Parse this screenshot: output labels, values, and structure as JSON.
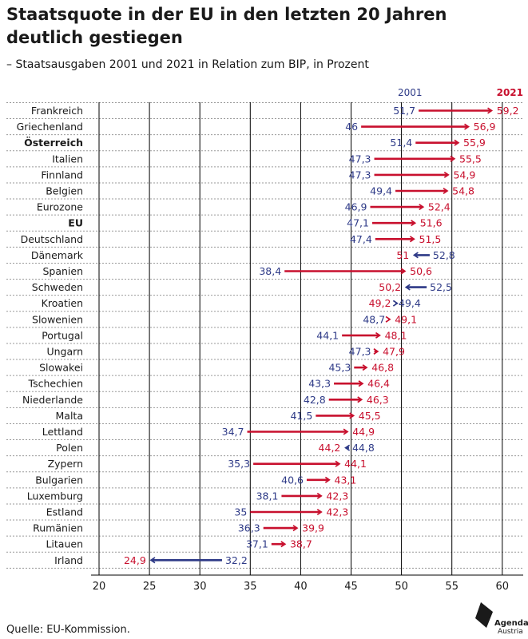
{
  "title": "Staatsquote in der EU in den letzten 20 Jahren deutlich gestiegen",
  "subtitle": "– Staatsausgaben 2001 und 2021 in Relation zum BIP, in Prozent",
  "source": "Quelle: EU-Kommission.",
  "logo": {
    "line1": "Agenda",
    "line2": "Austria"
  },
  "colors": {
    "y2001": "#2e3a87",
    "y2021": "#c8102e",
    "grid": "#000000",
    "dotted": "#9a9a9a"
  },
  "chart_data": {
    "type": "arrow-dot",
    "series": [
      {
        "name": "2001",
        "color": "#2e3a87"
      },
      {
        "name": "2021",
        "color": "#c8102e"
      }
    ],
    "xlim": [
      20,
      60
    ],
    "xticks": [
      20,
      25,
      30,
      35,
      40,
      45,
      50,
      55,
      60
    ],
    "grid": true,
    "rows": [
      {
        "country": "Frankreich",
        "v2001": "51,7",
        "v2021": "59,2",
        "bold": false
      },
      {
        "country": "Griechenland",
        "v2001": "46",
        "v2021": "56,9",
        "bold": false
      },
      {
        "country": "Österreich",
        "v2001": "51,4",
        "v2021": "55,9",
        "bold": true
      },
      {
        "country": "Italien",
        "v2001": "47,3",
        "v2021": "55,5",
        "bold": false
      },
      {
        "country": "Finnland",
        "v2001": "47,3",
        "v2021": "54,9",
        "bold": false
      },
      {
        "country": "Belgien",
        "v2001": "49,4",
        "v2021": "54,8",
        "bold": false
      },
      {
        "country": "Eurozone",
        "v2001": "46,9",
        "v2021": "52,4",
        "bold": false
      },
      {
        "country": "EU",
        "v2001": "47,1",
        "v2021": "51,6",
        "bold": true
      },
      {
        "country": "Deutschland",
        "v2001": "47,4",
        "v2021": "51,5",
        "bold": false
      },
      {
        "country": "Dänemark",
        "v2001": "52,8",
        "v2021": "51",
        "bold": false
      },
      {
        "country": "Spanien",
        "v2001": "38,4",
        "v2021": "50,6",
        "bold": false
      },
      {
        "country": "Schweden",
        "v2001": "52,5",
        "v2021": "50,2",
        "bold": false
      },
      {
        "country": "Kroatien",
        "v2001": "49,4",
        "v2021": "49,2",
        "bold": false
      },
      {
        "country": "Slowenien",
        "v2001": "48,7",
        "v2021": "49,1",
        "bold": false
      },
      {
        "country": "Portugal",
        "v2001": "44,1",
        "v2021": "48,1",
        "bold": false
      },
      {
        "country": "Ungarn",
        "v2001": "47,3",
        "v2021": "47,9",
        "bold": false
      },
      {
        "country": "Slowakei",
        "v2001": "45,3",
        "v2021": "46,8",
        "bold": false
      },
      {
        "country": "Tschechien",
        "v2001": "43,3",
        "v2021": "46,4",
        "bold": false
      },
      {
        "country": "Niederlande",
        "v2001": "42,8",
        "v2021": "46,3",
        "bold": false
      },
      {
        "country": "Malta",
        "v2001": "41,5",
        "v2021": "45,5",
        "bold": false
      },
      {
        "country": "Lettland",
        "v2001": "34,7",
        "v2021": "44,9",
        "bold": false
      },
      {
        "country": "Polen",
        "v2001": "44,8",
        "v2021": "44,2",
        "bold": false
      },
      {
        "country": "Zypern",
        "v2001": "35,3",
        "v2021": "44,1",
        "bold": false
      },
      {
        "country": "Bulgarien",
        "v2001": "40,6",
        "v2021": "43,1",
        "bold": false
      },
      {
        "country": "Luxemburg",
        "v2001": "38,1",
        "v2021": "42,3",
        "bold": false
      },
      {
        "country": "Estland",
        "v2001": "35",
        "v2021": "42,3",
        "bold": false
      },
      {
        "country": "Rumänien",
        "v2001": "36,3",
        "v2021": "39,9",
        "bold": false
      },
      {
        "country": "Litauen",
        "v2001": "37,1",
        "v2021": "38,7",
        "bold": false
      },
      {
        "country": "Irland",
        "v2001": "32,2",
        "v2021": "24,9",
        "bold": false
      }
    ]
  }
}
